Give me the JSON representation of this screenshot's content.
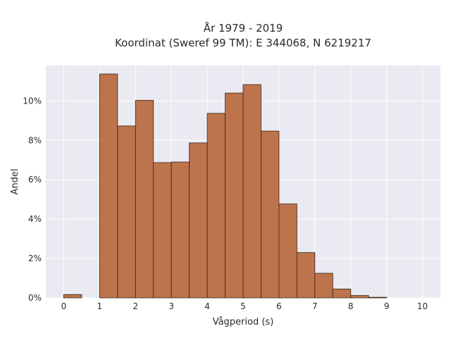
{
  "chart_data": {
    "type": "bar",
    "title_line1": "År 1979 - 2019",
    "title_line2": "Koordinat (Sweref 99 TM): E 344068, N 6219217",
    "xlabel": "Vågperiod (s)",
    "ylabel": "Andel",
    "xlim": [
      -0.5,
      10.5
    ],
    "ylim": [
      0,
      0.118
    ],
    "xticks": [
      0,
      1,
      2,
      3,
      4,
      5,
      6,
      7,
      8,
      9,
      10
    ],
    "yticks": [
      0,
      0.02,
      0.04,
      0.06,
      0.08,
      0.1
    ],
    "ytick_labels": [
      "0%",
      "2%",
      "4%",
      "6%",
      "8%",
      "10%"
    ],
    "bin_width": 0.5,
    "bins": [
      {
        "start": 0.0,
        "value": 0.0017
      },
      {
        "start": 0.5,
        "value": 0.0
      },
      {
        "start": 1.0,
        "value": 0.1137
      },
      {
        "start": 1.5,
        "value": 0.0873
      },
      {
        "start": 2.0,
        "value": 0.1003
      },
      {
        "start": 2.5,
        "value": 0.0687
      },
      {
        "start": 3.0,
        "value": 0.069
      },
      {
        "start": 3.5,
        "value": 0.0787
      },
      {
        "start": 4.0,
        "value": 0.0937
      },
      {
        "start": 4.5,
        "value": 0.104
      },
      {
        "start": 5.0,
        "value": 0.1083
      },
      {
        "start": 5.5,
        "value": 0.0847
      },
      {
        "start": 6.0,
        "value": 0.0477
      },
      {
        "start": 6.5,
        "value": 0.023
      },
      {
        "start": 7.0,
        "value": 0.0125
      },
      {
        "start": 7.5,
        "value": 0.0045
      },
      {
        "start": 8.0,
        "value": 0.0012
      },
      {
        "start": 8.5,
        "value": 0.0003
      }
    ],
    "grid": true,
    "bar_color": "#b8693f",
    "bar_edge_color": "#3a2418",
    "background_color": "#eaeaf2",
    "grid_color": "#ffffff"
  }
}
